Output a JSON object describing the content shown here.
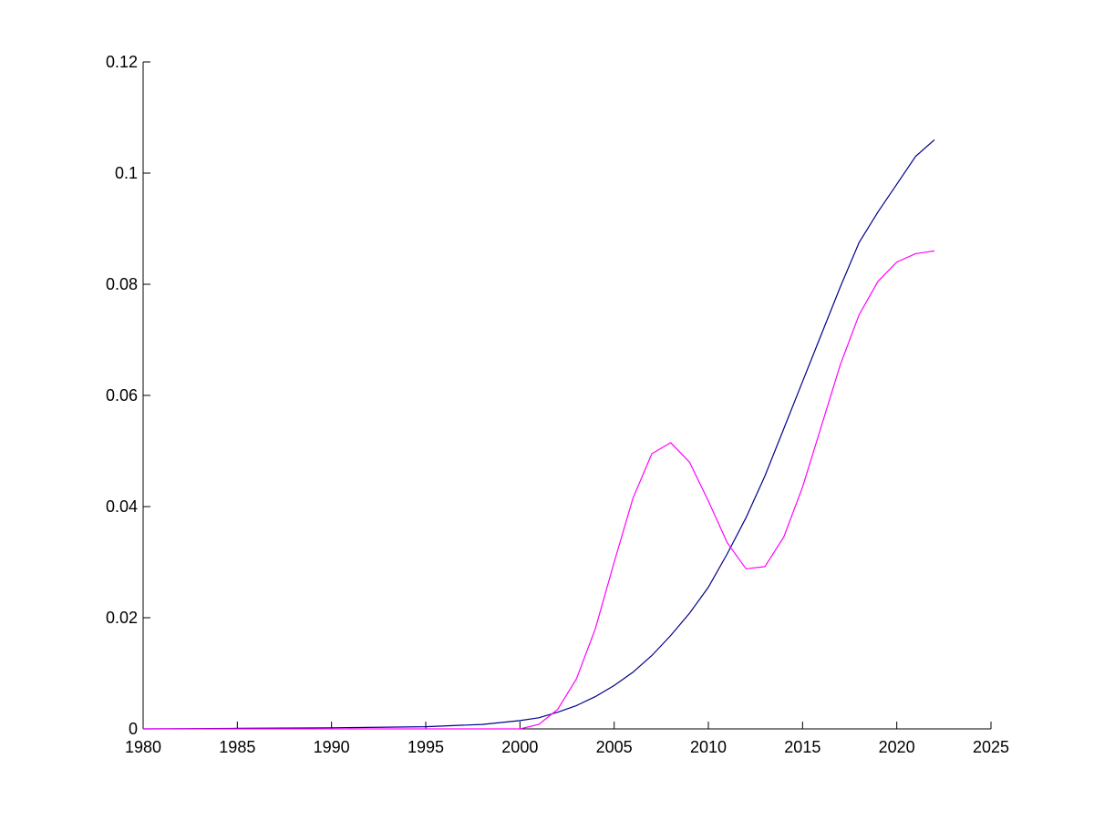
{
  "chart_data": {
    "type": "line",
    "title": "",
    "xlabel": "",
    "ylabel": "",
    "xlim": [
      1980,
      2025
    ],
    "ylim": [
      0,
      0.12
    ],
    "grid": false,
    "x_ticks": [
      "1980",
      "1985",
      "1990",
      "1995",
      "2000",
      "2005",
      "2010",
      "2015",
      "2020",
      "2025"
    ],
    "y_ticks": [
      "0",
      "0.02",
      "0.04",
      "0.06",
      "0.08",
      "0.1",
      "0.12"
    ],
    "series": [
      {
        "color": "#00008b",
        "x": [
          1980,
          1985,
          1990,
          1995,
          1998,
          2000,
          2001,
          2002,
          2003,
          2004,
          2005,
          2006,
          2007,
          2008,
          2009,
          2010,
          2011,
          2012,
          2013,
          2014,
          2015,
          2016,
          2017,
          2018,
          2019,
          2020,
          2021,
          2022
        ],
        "y": [
          0,
          0.0001,
          0.0002,
          0.0004,
          0.0008,
          0.0015,
          0.002,
          0.003,
          0.0042,
          0.0058,
          0.0078,
          0.0102,
          0.0132,
          0.0168,
          0.0208,
          0.0255,
          0.0315,
          0.038,
          0.0455,
          0.054,
          0.0625,
          0.071,
          0.0795,
          0.0875,
          0.093,
          0.098,
          0.103,
          0.106
        ]
      },
      {
        "color": "#ff00ff",
        "x": [
          1980,
          1985,
          1990,
          1995,
          2000,
          2001,
          2002,
          2003,
          2004,
          2005,
          2006,
          2007,
          2008,
          2009,
          2010,
          2011,
          2012,
          2013,
          2014,
          2015,
          2016,
          2017,
          2018,
          2019,
          2020,
          2021,
          2022
        ],
        "y": [
          0,
          0,
          0,
          0,
          0,
          0.0008,
          0.0035,
          0.009,
          0.018,
          0.03,
          0.0415,
          0.0495,
          0.0515,
          0.048,
          0.041,
          0.0335,
          0.0288,
          0.0292,
          0.0345,
          0.0435,
          0.0545,
          0.0655,
          0.0745,
          0.0805,
          0.084,
          0.0855,
          0.086
        ]
      }
    ]
  }
}
